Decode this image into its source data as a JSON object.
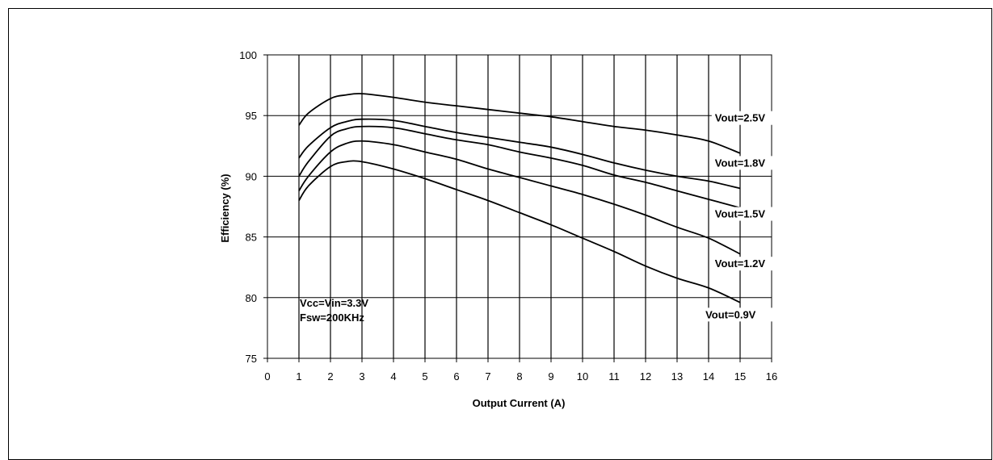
{
  "chart_data": {
    "type": "line",
    "title": "",
    "xlabel": "Output Current (A)",
    "ylabel": "Efficiency  (%)",
    "xlim": [
      0,
      16
    ],
    "ylim": [
      75,
      100
    ],
    "x_ticks": [
      0,
      1,
      2,
      3,
      4,
      5,
      6,
      7,
      8,
      9,
      10,
      11,
      12,
      13,
      14,
      15,
      16
    ],
    "y_ticks": [
      75,
      80,
      85,
      90,
      95,
      100
    ],
    "grid": true,
    "line_color": "#000000",
    "annotations": [
      "Vcc=Vin=3.3V",
      "Fsw=200KHz"
    ],
    "series": [
      {
        "name": "Vout=2.5V",
        "x": [
          1,
          1.3,
          2,
          2.5,
          3,
          4,
          5,
          6,
          7,
          8,
          9,
          10,
          11,
          12,
          13,
          14,
          15
        ],
        "y": [
          94.2,
          95.2,
          96.4,
          96.7,
          96.8,
          96.5,
          96.1,
          95.8,
          95.5,
          95.2,
          94.9,
          94.5,
          94.1,
          93.8,
          93.4,
          92.9,
          91.9
        ]
      },
      {
        "name": "Vout=1.8V",
        "x": [
          1,
          1.3,
          2,
          2.5,
          3,
          4,
          5,
          6,
          7,
          8,
          9,
          10,
          11,
          12,
          13,
          14,
          15
        ],
        "y": [
          91.5,
          92.5,
          94.0,
          94.5,
          94.7,
          94.6,
          94.1,
          93.6,
          93.2,
          92.8,
          92.4,
          91.8,
          91.1,
          90.5,
          90.0,
          89.6,
          89.0
        ]
      },
      {
        "name": "Vout=1.5V",
        "x": [
          1,
          1.3,
          2,
          2.5,
          3,
          4,
          5,
          6,
          7,
          8,
          9,
          10,
          11,
          12,
          13,
          14,
          15
        ],
        "y": [
          90.0,
          91.2,
          93.3,
          93.9,
          94.1,
          94.0,
          93.5,
          93.0,
          92.6,
          92.0,
          91.5,
          90.9,
          90.1,
          89.5,
          88.8,
          88.1,
          87.4
        ]
      },
      {
        "name": "Vout=1.2V",
        "x": [
          1,
          1.3,
          2,
          2.5,
          3,
          4,
          5,
          6,
          7,
          8,
          9,
          10,
          11,
          12,
          13,
          14,
          15
        ],
        "y": [
          88.8,
          90.0,
          92.0,
          92.7,
          92.9,
          92.6,
          92.0,
          91.4,
          90.6,
          89.9,
          89.2,
          88.5,
          87.7,
          86.8,
          85.8,
          84.9,
          83.6
        ]
      },
      {
        "name": "Vout=0.9V",
        "x": [
          1,
          1.3,
          2,
          2.5,
          3,
          4,
          5,
          6,
          7,
          8,
          9,
          10,
          11,
          12,
          13,
          14,
          15
        ],
        "y": [
          88.0,
          89.2,
          90.8,
          91.2,
          91.2,
          90.6,
          89.8,
          88.9,
          88.0,
          87.0,
          86.0,
          84.9,
          83.8,
          82.6,
          81.6,
          80.8,
          79.6
        ]
      }
    ]
  }
}
